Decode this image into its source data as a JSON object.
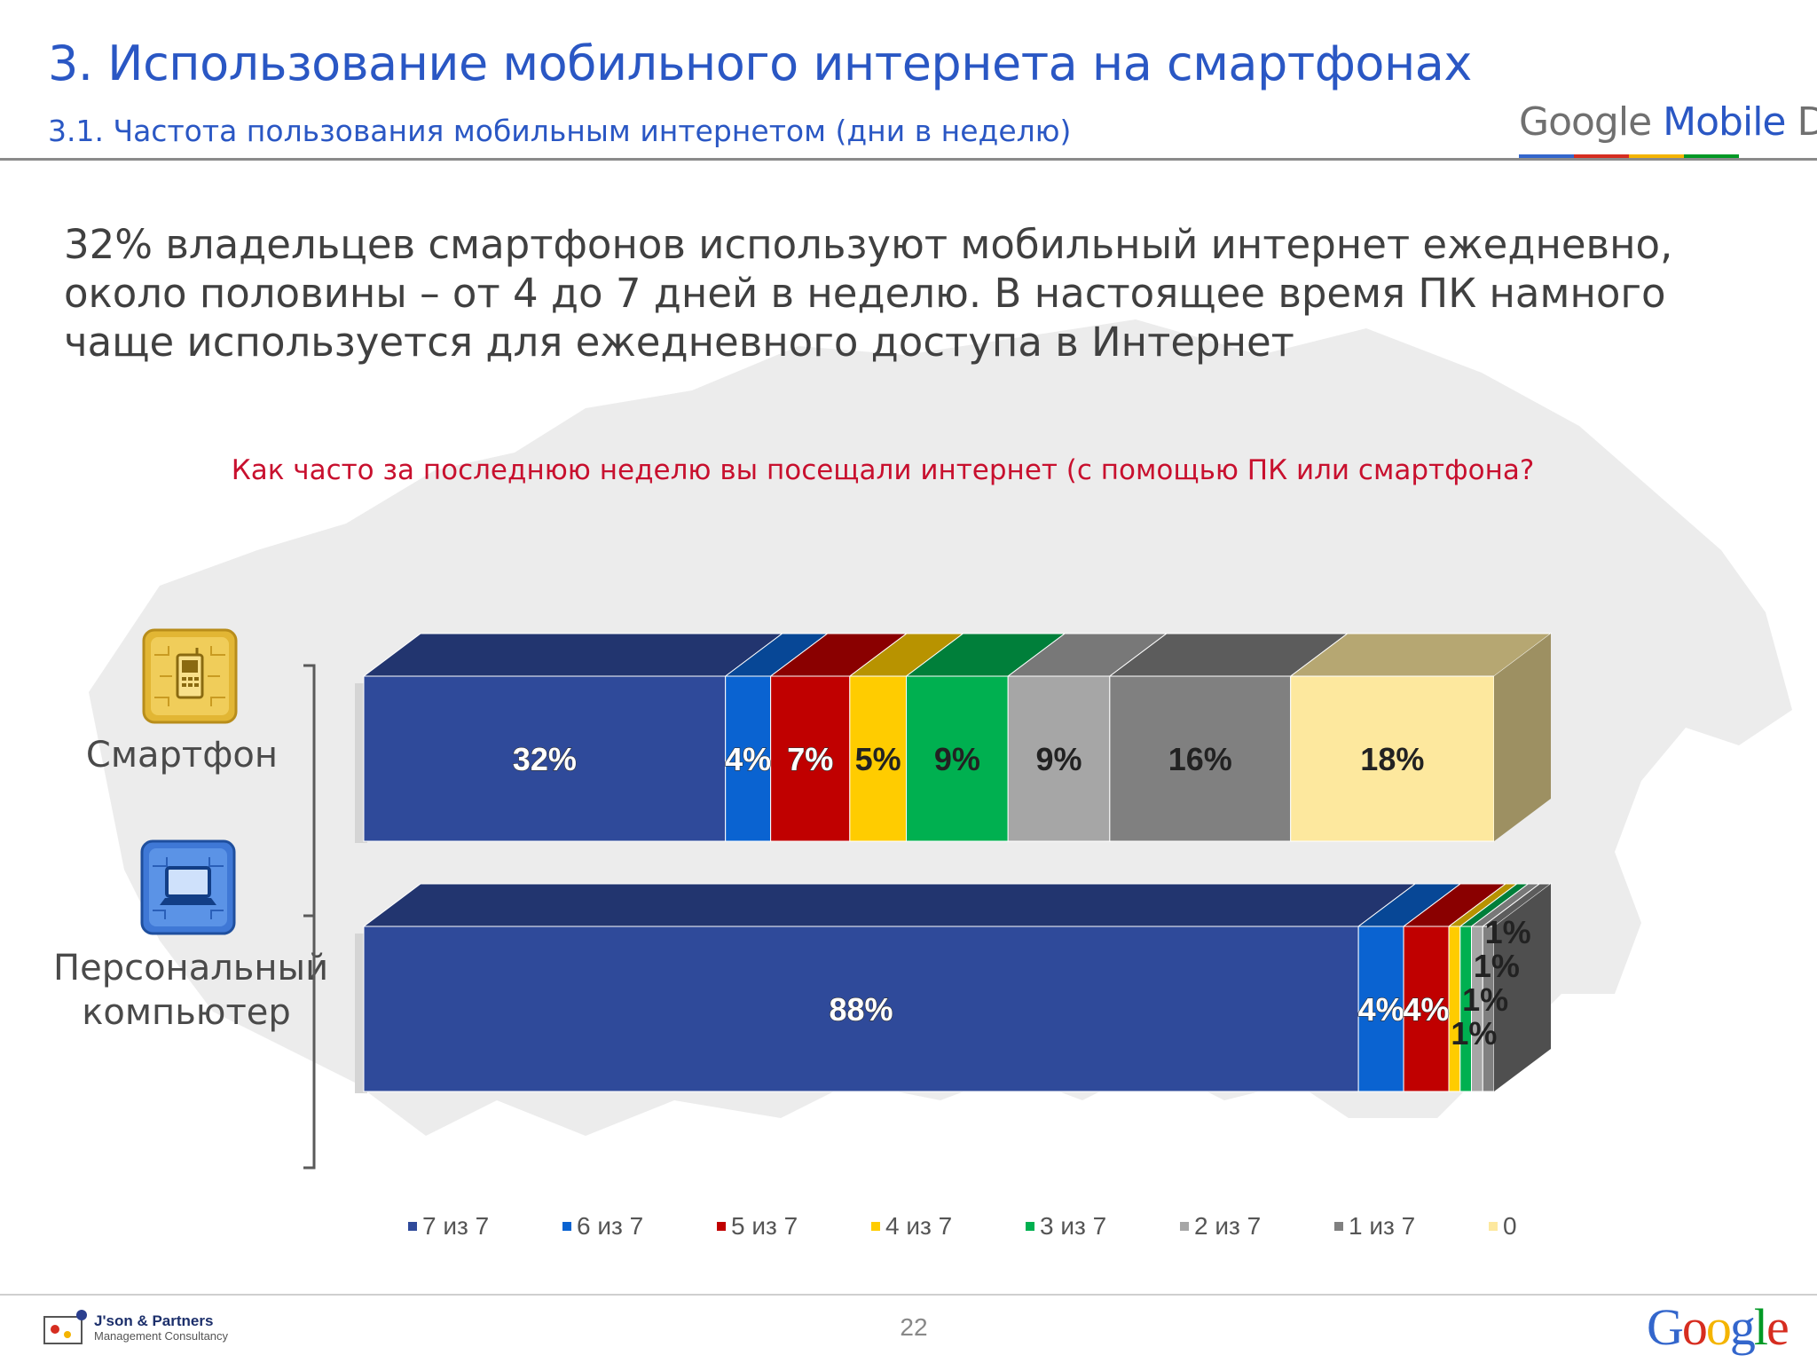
{
  "header": {
    "title": "3. Использование мобильного интернета на смартфонах",
    "subtitle": "3.1. Частота пользования мобильным интернетом (дни в неделю)",
    "brand_logo_word1": "Google ",
    "brand_logo_word2": "Mobile",
    "brand_logo_word3": " Day"
  },
  "headline": "32% владельцев смартфонов используют мобильный интернет ежедневно, около половины – от 4 до 7 дней в неделю. В настоящее время ПК намного чаще используется для ежедневного доступа в Интернет",
  "question": "Как часто за последнюю неделю вы посещали интернет (с помощью ПК или смартфона?",
  "row_labels": {
    "smartphone": "Смартфон",
    "pc_line1": "Персональный",
    "pc_line2": "компьютер"
  },
  "chart_data": {
    "type": "bar",
    "orientation": "horizontal",
    "stacked": true,
    "percent_stacked": true,
    "categories": [
      "Смартфон",
      "Персональный компьютер"
    ],
    "series": [
      {
        "name": "7 из 7",
        "color": "#2f4a9a",
        "values": [
          32,
          88
        ],
        "labels": [
          "32%",
          "88%"
        ]
      },
      {
        "name": "6 из 7",
        "color": "#0a63d1",
        "values": [
          4,
          4
        ],
        "labels": [
          "4%",
          "4%"
        ]
      },
      {
        "name": "5 из 7",
        "color": "#c00000",
        "values": [
          7,
          4
        ],
        "labels": [
          "7%",
          "4%"
        ]
      },
      {
        "name": "4 из 7",
        "color": "#ffcc00",
        "values": [
          5,
          1
        ],
        "labels": [
          "5%",
          "1%"
        ]
      },
      {
        "name": "3 из 7",
        "color": "#00b050",
        "values": [
          9,
          1
        ],
        "labels": [
          "9%",
          "1%"
        ]
      },
      {
        "name": "2 из 7",
        "color": "#a6a6a6",
        "values": [
          9,
          1
        ],
        "labels": [
          "9%",
          "1%"
        ]
      },
      {
        "name": "1 из 7",
        "color": "#808080",
        "values": [
          16,
          1
        ],
        "labels": [
          "16%",
          "1%"
        ]
      },
      {
        "name": "0",
        "color": "#fde89e",
        "values": [
          18,
          0
        ],
        "labels": [
          "18%",
          ""
        ]
      }
    ],
    "legend_position": "bottom",
    "grid": false,
    "style": "3d"
  },
  "footer": {
    "page_number": "22",
    "partner_name": "J'son & Partners",
    "partner_tagline": "Management Consultancy",
    "google_letters": [
      "G",
      "o",
      "o",
      "g",
      "l",
      "e"
    ],
    "google_colors": [
      "#3366cc",
      "#d62d20",
      "#f4b400",
      "#3366cc",
      "#009925",
      "#d62d20"
    ]
  },
  "brand_stripe_colors": [
    "#3366cc",
    "#d62d20",
    "#f4b400",
    "#009925"
  ]
}
